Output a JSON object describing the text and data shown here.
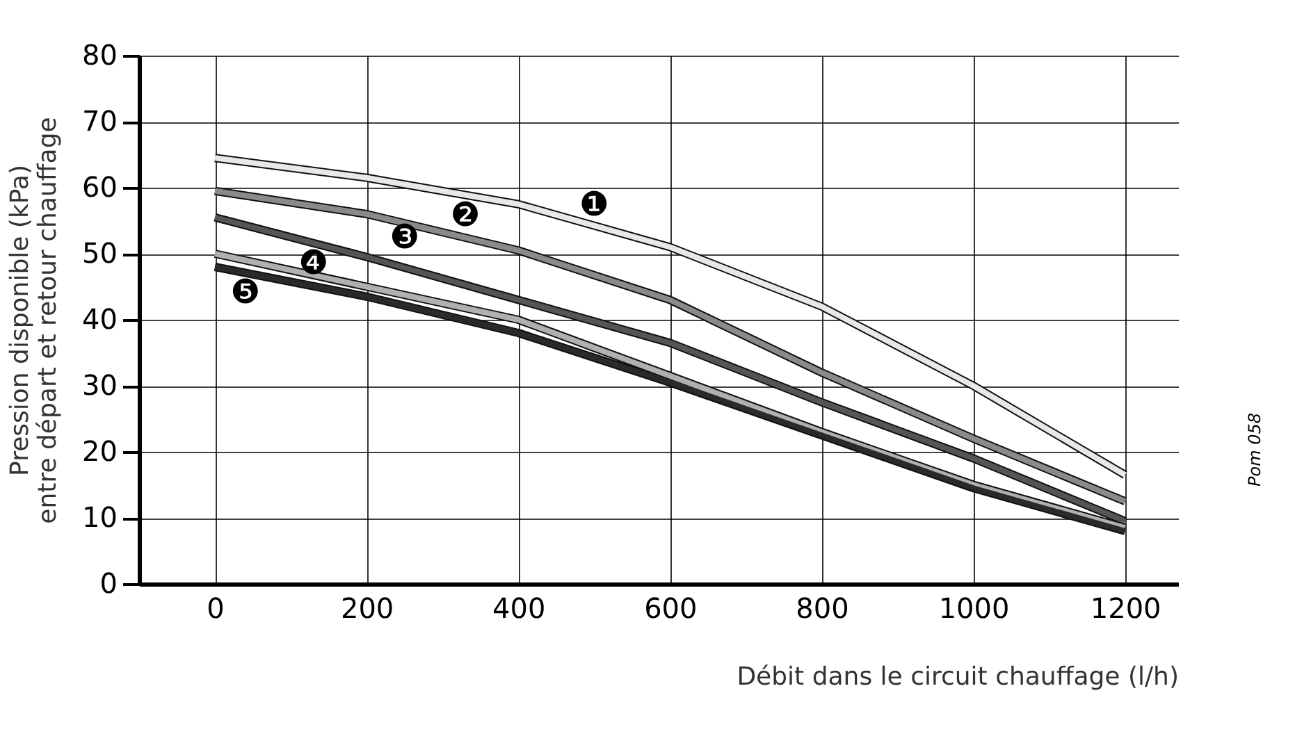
{
  "chart_data": {
    "type": "line",
    "xlabel": "Débit dans le circuit chauffage (l/h)",
    "ylabel": "Pression disponible (kPa)\nentre départ et retour chauffage",
    "x": [
      0,
      200,
      400,
      600,
      800,
      1000,
      1200
    ],
    "series": [
      {
        "name": "❶",
        "color": "#e8e8e8",
        "values": [
          64.5,
          61.5,
          57.5,
          51,
          42,
          30,
          16.5
        ]
      },
      {
        "name": "❷",
        "color": "#8a8a8a",
        "values": [
          59.5,
          56,
          50.5,
          43,
          32,
          22,
          12.5
        ]
      },
      {
        "name": "❸",
        "color": "#555555",
        "values": [
          55.5,
          49.5,
          43,
          36.5,
          27.5,
          19,
          9.5
        ]
      },
      {
        "name": "❹",
        "color": "#b0b0b0",
        "values": [
          50,
          45,
          40,
          31.5,
          23,
          15,
          8.5
        ]
      },
      {
        "name": "❺",
        "color": "#2a2a2a",
        "values": [
          48,
          43.5,
          38,
          30.5,
          22.5,
          14.5,
          8
        ]
      }
    ],
    "xlim": [
      -100,
      1270
    ],
    "ylim": [
      0,
      80
    ],
    "xticks": [
      0,
      200,
      400,
      600,
      800,
      1000,
      1200
    ],
    "yticks": [
      0,
      10,
      20,
      30,
      40,
      50,
      60,
      70,
      80
    ],
    "grid": true,
    "legend": false,
    "marker": "none",
    "line_style": "solid",
    "annotations": [
      "Pom 058"
    ]
  }
}
